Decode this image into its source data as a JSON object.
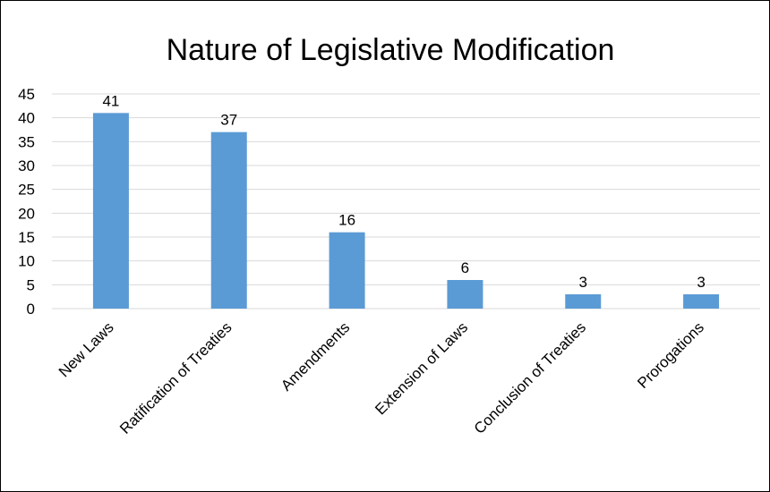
{
  "chart_data": {
    "type": "bar",
    "title": "Nature of Legislative Modification",
    "categories": [
      "New Laws",
      "Ratification of Treaties",
      "Amendments",
      "Extension of Laws",
      "Conclusion of Treaties",
      "Prorogations"
    ],
    "values": [
      41,
      37,
      16,
      6,
      3,
      3
    ],
    "ylim": [
      0,
      45
    ],
    "yticks": [
      0,
      5,
      10,
      15,
      20,
      25,
      30,
      35,
      40,
      45
    ],
    "grid": true,
    "data_labels": true,
    "bar_color": "#5b9bd5",
    "grid_color": "#d9d9d9"
  }
}
